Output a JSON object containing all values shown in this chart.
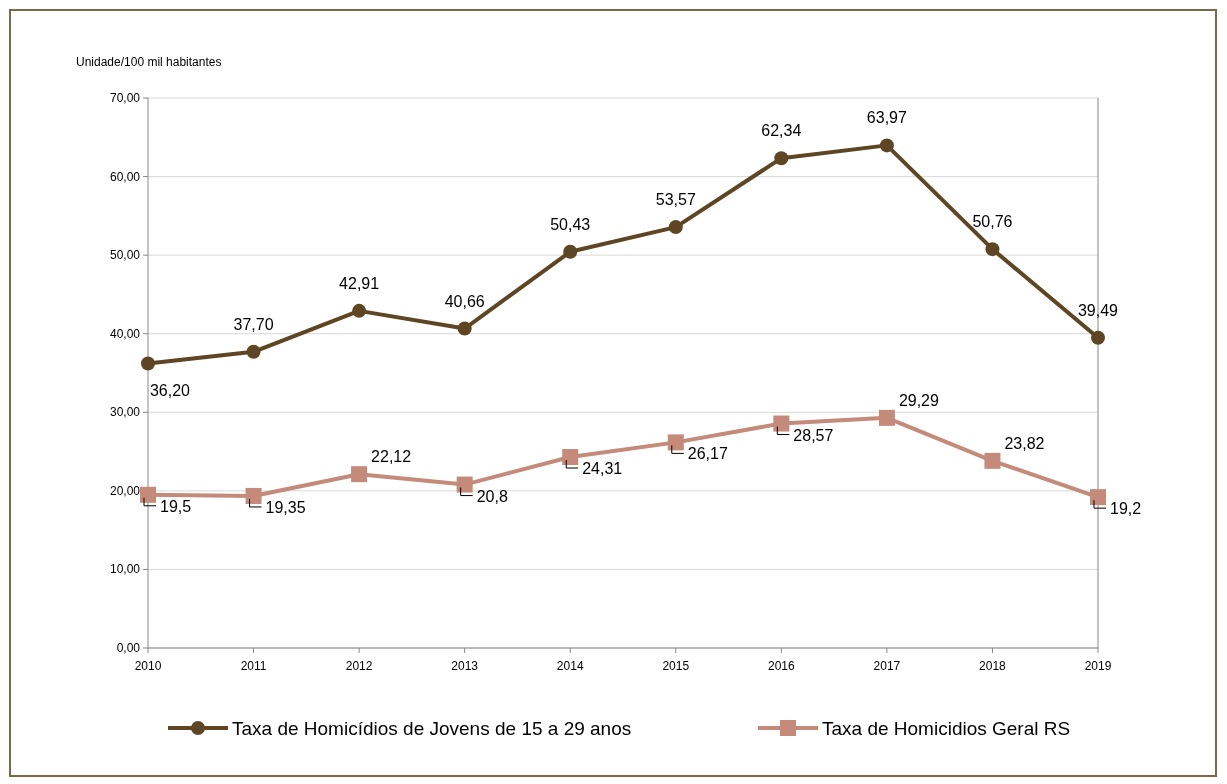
{
  "chart_data": {
    "type": "line",
    "ylabel": "Unidade/100 mil habitantes",
    "x": [
      2010,
      2011,
      2012,
      2013,
      2014,
      2015,
      2016,
      2017,
      2018,
      2019
    ],
    "xlim": [
      2010,
      2019
    ],
    "xticks": [
      2010,
      2011,
      2012,
      2013,
      2014,
      2015,
      2016,
      2017,
      2018,
      2019
    ],
    "ylim": [
      0,
      70
    ],
    "yticks": [
      {
        "value": 0,
        "label": "0,00"
      },
      {
        "value": 10,
        "label": "10,00"
      },
      {
        "value": 20,
        "label": "20,00"
      },
      {
        "value": 30,
        "label": "30,00"
      },
      {
        "value": 40,
        "label": "40,00"
      },
      {
        "value": 50,
        "label": "50,00"
      },
      {
        "value": 60,
        "label": "60,00"
      },
      {
        "value": 70,
        "label": "70,00"
      }
    ],
    "grid": "y",
    "legend": "bottom",
    "series": [
      {
        "name": "Taxa de Homicídios de Jovens de 15 a 29 anos",
        "color": "#5e4524",
        "marker": "circle",
        "values": [
          36.2,
          37.7,
          42.91,
          40.66,
          50.43,
          53.57,
          62.34,
          63.97,
          50.76,
          39.49
        ],
        "value_labels": [
          "36,20",
          "37,70",
          "42,91",
          "40,66",
          "50,43",
          "53,57",
          "62,34",
          "63,97",
          "50,76",
          "39,49"
        ]
      },
      {
        "name": "Taxa de Homicidios Geral RS",
        "color": "#c48a7a",
        "marker": "square",
        "values": [
          19.5,
          19.35,
          22.12,
          20.8,
          24.31,
          26.17,
          28.57,
          29.29,
          23.82,
          19.2
        ],
        "value_labels": [
          "19,5",
          "19,35",
          "22,12",
          "20,8",
          "24,31",
          "26,17",
          "28,57",
          "29,29",
          "23,82",
          "19,2"
        ]
      }
    ]
  }
}
